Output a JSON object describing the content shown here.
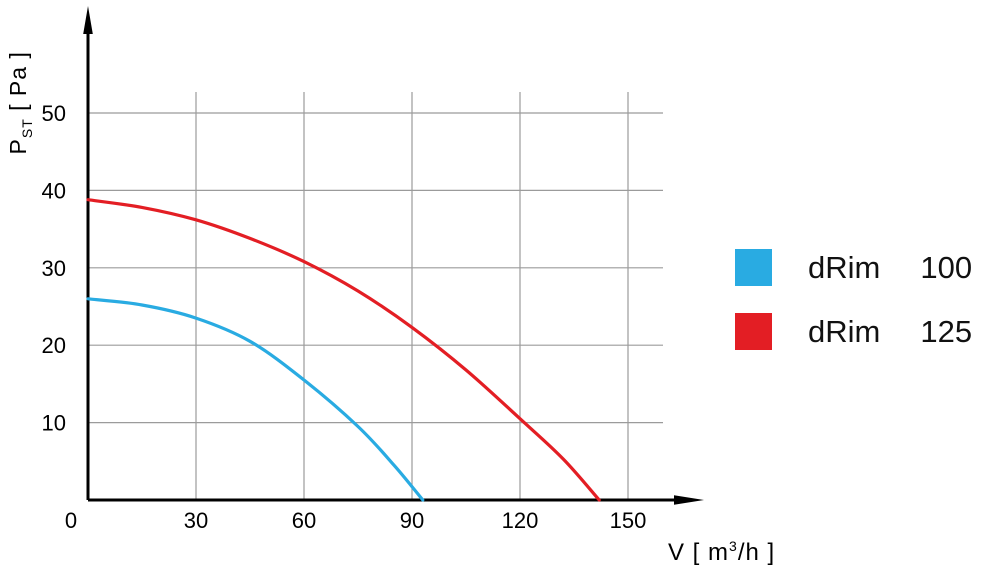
{
  "chart_data": {
    "type": "line",
    "title": "",
    "xlabel": "V [ m3/h ]",
    "ylabel": "PST [ Pa ]",
    "xlim": [
      0,
      157
    ],
    "ylim": [
      0,
      56
    ],
    "xticks": [
      0,
      30,
      60,
      90,
      120,
      150
    ],
    "yticks": [
      10,
      20,
      30,
      40,
      50
    ],
    "grid": true,
    "grid_color": "#9b9b9b",
    "axis_color": "#000000",
    "legend_position": "right",
    "series": [
      {
        "id": "drim-100",
        "name": "dRim 100",
        "color": "#29abe2",
        "points": [
          [
            0,
            26
          ],
          [
            15,
            25.2
          ],
          [
            30,
            23.5
          ],
          [
            45,
            20.5
          ],
          [
            60,
            15.5
          ],
          [
            75,
            9.5
          ],
          [
            85,
            4.5
          ],
          [
            93,
            0
          ]
        ]
      },
      {
        "id": "drim-125",
        "name": "dRim 125",
        "color": "#e31e24",
        "points": [
          [
            0,
            38.8
          ],
          [
            15,
            37.8
          ],
          [
            30,
            36.2
          ],
          [
            45,
            33.8
          ],
          [
            60,
            30.8
          ],
          [
            75,
            27
          ],
          [
            90,
            22.3
          ],
          [
            105,
            16.8
          ],
          [
            120,
            10.5
          ],
          [
            132,
            5.3
          ],
          [
            142,
            0
          ]
        ]
      }
    ]
  },
  "axis": {
    "y_main": "P",
    "y_sub": "ST",
    "y_unit": " [ Pa ]",
    "x_main": "V [ m",
    "x_sup": "3",
    "x_end": "/h ]"
  },
  "legend": {
    "items": [
      {
        "model": "dRim",
        "size": "100",
        "color": "#29abe2"
      },
      {
        "model": "dRim",
        "size": "125",
        "color": "#e31e24"
      }
    ]
  }
}
